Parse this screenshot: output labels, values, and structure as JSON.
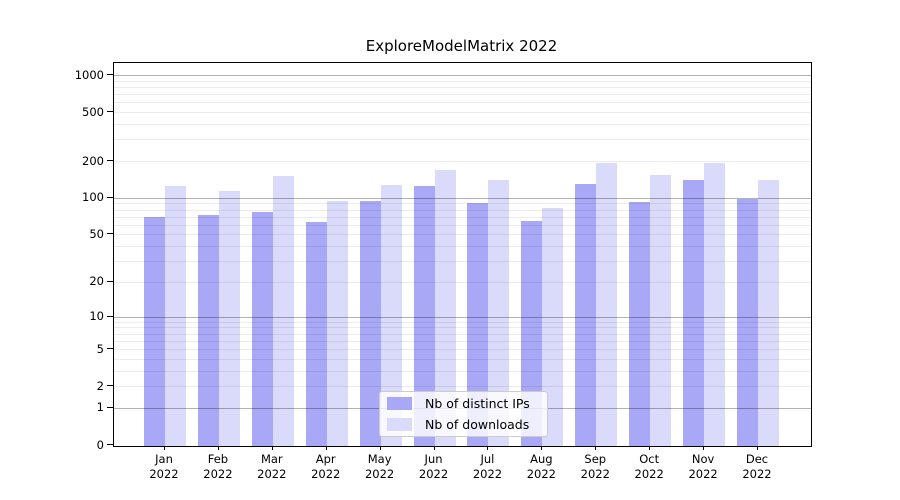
{
  "title": "ExploreModelMatrix 2022",
  "legend": {
    "items": [
      {
        "label": "Nb of distinct IPs"
      },
      {
        "label": "Nb of downloads"
      }
    ]
  },
  "chart_data": {
    "type": "bar",
    "title": "ExploreModelMatrix 2022",
    "categories": [
      "Jan",
      "Feb",
      "Mar",
      "Apr",
      "May",
      "Jun",
      "Jul",
      "Aug",
      "Sep",
      "Oct",
      "Nov",
      "Dec"
    ],
    "category_sublabel": "2022",
    "series": [
      {
        "name": "Nb of distinct IPs",
        "color": "#a8a8f6",
        "values": [
          70,
          72,
          76,
          63,
          95,
          125,
          90,
          65,
          130,
          93,
          140,
          98
        ]
      },
      {
        "name": "Nb of downloads",
        "color": "#dadafa",
        "values": [
          126,
          114,
          150,
          95,
          127,
          168,
          140,
          82,
          191,
          153,
          194,
          140
        ]
      }
    ],
    "xlabel": "",
    "ylabel": "",
    "yscale": "log1p",
    "yticks": [
      0,
      1,
      2,
      5,
      10,
      20,
      50,
      100,
      200,
      500,
      1000
    ],
    "major_grid_values": [
      1,
      10,
      100,
      1000
    ],
    "ylim": [
      0,
      1250
    ],
    "grid": true,
    "legend_position": "lower center",
    "colors": {
      "bar_distinct_ips": "#a8a8f6",
      "bar_downloads": "#dadafa",
      "axis": "#000000",
      "major_grid": "#b3b3b3",
      "minor_grid": "#ececec",
      "legend_border": "#cccccc"
    }
  }
}
